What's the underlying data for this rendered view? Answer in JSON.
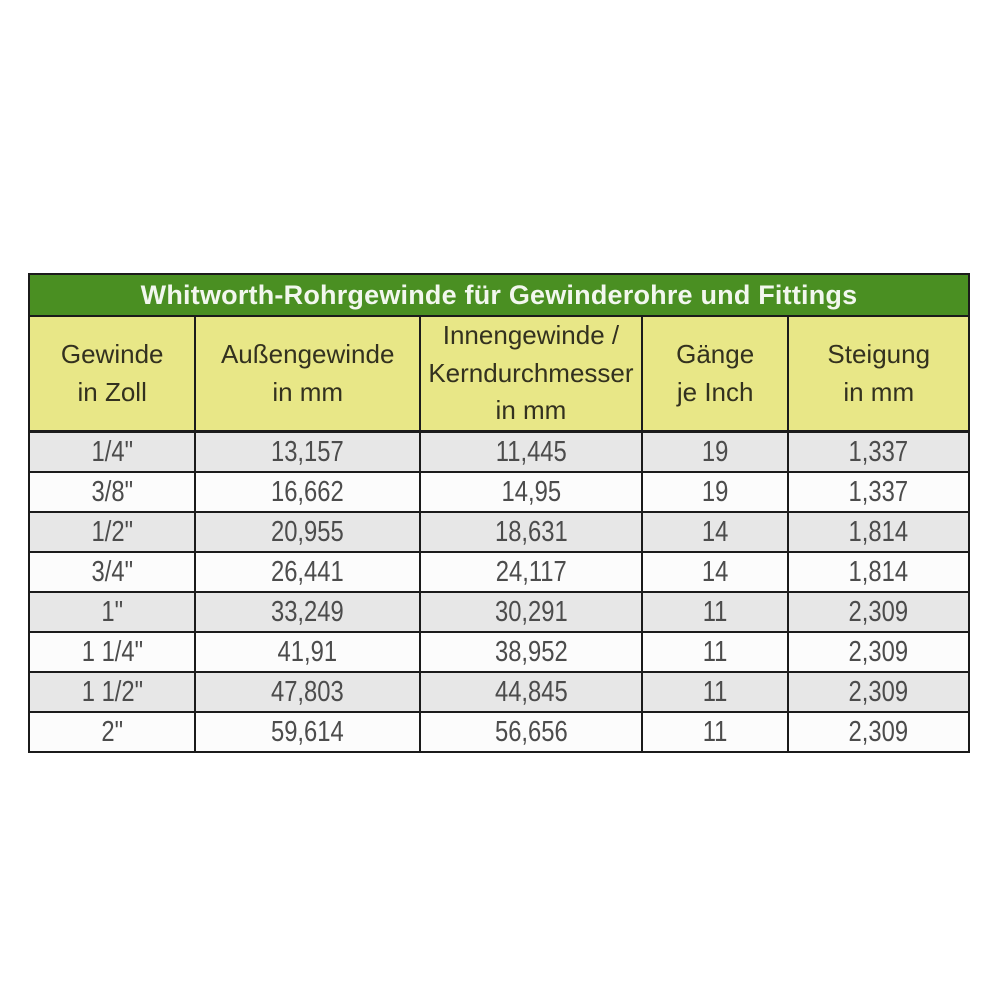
{
  "table": {
    "title": "Whitworth-Rohrgewinde für Gewinderohre und Fittings",
    "columns": [
      {
        "label": "Gewinde\nin Zoll"
      },
      {
        "label": "Außengewinde\nin mm"
      },
      {
        "label": "Innengewinde /\nKerndurchmesser\nin mm"
      },
      {
        "label": "Gänge\nje Inch"
      },
      {
        "label": "Steigung\nin mm"
      }
    ],
    "rows": [
      [
        "1/4\"",
        "13,157",
        "11,445",
        "19",
        "1,337"
      ],
      [
        "3/8\"",
        "16,662",
        "14,95",
        "19",
        "1,337"
      ],
      [
        "1/2\"",
        "20,955",
        "18,631",
        "14",
        "1,814"
      ],
      [
        "3/4\"",
        "26,441",
        "24,117",
        "14",
        "1,814"
      ],
      [
        "1\"",
        "33,249",
        "30,291",
        "11",
        "2,309"
      ],
      [
        "1 1/4\"",
        "41,91",
        "38,952",
        "11",
        "2,309"
      ],
      [
        "1 1/2\"",
        "47,803",
        "44,845",
        "11",
        "2,309"
      ],
      [
        "2\"",
        "59,614",
        "56,656",
        "11",
        "2,309"
      ]
    ],
    "colors": {
      "title_bg": "#4a8f22",
      "title_text": "#f2f7ee",
      "header_bg": "#e8e787",
      "header_text": "#33311f",
      "row_gray": "#e7e7e7",
      "row_white": "#fcfcfc",
      "border": "#1b1b1b",
      "data_text": "#4c4c4c"
    }
  }
}
